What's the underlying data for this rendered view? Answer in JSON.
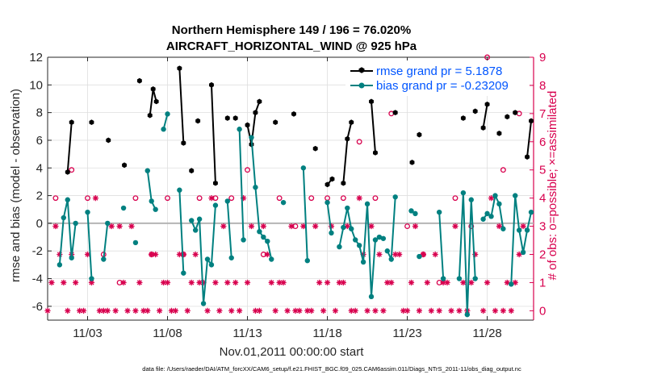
{
  "chart_data": {
    "type": "line",
    "title_line1": "Northern Hemisphere 149 / 196 = 76.020%",
    "title_line2": "AIRCRAFT_HORIZONTAL_WIND @ 925 hPa",
    "xlabel": "Nov.01,2011 00:00:00 start",
    "ylabel_left": "rmse and bias (model - observation)",
    "ylabel_right": "# of obs: o=possible; ×=assimilated",
    "footer": "data file: /Users/raeder/DAI/ATM_forcXX/CAM6_setup/f.e21.FHIST_BGC.f09_025.CAM6assim.011/Diags_NTrS_2011-11/obs_diag_output.nc",
    "xlim": [
      0.5,
      30.9
    ],
    "ylim_left": [
      -7,
      12
    ],
    "ylim_right": [
      -0.333,
      9
    ],
    "x_ticks": [
      3,
      8,
      13,
      18,
      23,
      28
    ],
    "x_tick_labels": [
      "11/03",
      "11/08",
      "11/13",
      "11/18",
      "11/23",
      "11/28"
    ],
    "y_left_ticks": [
      -6,
      -4,
      -2,
      0,
      2,
      4,
      6,
      8,
      10,
      12
    ],
    "y_left_tick_labels": [
      "-6",
      "-4",
      "-2",
      "0",
      "2",
      "4",
      "6",
      "8",
      "10",
      "12"
    ],
    "y_right_ticks": [
      0,
      1,
      2,
      3,
      4,
      5,
      6,
      7,
      8,
      9
    ],
    "y_right_tick_labels": [
      "0",
      "1",
      "2",
      "3",
      "4",
      "5",
      "6",
      "7",
      "8",
      "9"
    ],
    "grid": true,
    "legend": [
      {
        "name": "rmse",
        "label": "rmse grand pr = 5.1878",
        "color": "#000000"
      },
      {
        "name": "bias",
        "label": "bias grand pr = -0.23209",
        "color": "#008080"
      }
    ],
    "colors": {
      "rmse": "#000000",
      "bias": "#008080",
      "obs": "#d8004e",
      "zero_line": "#b4b4b4"
    },
    "rmse_segments": [
      [
        [
          1.75,
          3.7
        ],
        [
          2.0,
          7.3
        ]
      ],
      [
        [
          3.25,
          7.3
        ]
      ],
      [
        [
          4.3,
          6.0
        ]
      ],
      [
        [
          5.3,
          4.2
        ]
      ],
      [
        [
          6.25,
          10.3
        ]
      ],
      [
        [
          6.9,
          7.8
        ],
        [
          7.1,
          9.7
        ],
        [
          7.3,
          8.8
        ]
      ],
      [
        [
          8.75,
          11.2
        ],
        [
          9.0,
          5.8
        ]
      ],
      [
        [
          9.5,
          3.8
        ]
      ],
      [
        [
          9.9,
          7.4
        ]
      ],
      [
        [
          10.75,
          10.0
        ],
        [
          11.0,
          2.9
        ]
      ],
      [
        [
          11.75,
          7.6
        ]
      ],
      [
        [
          12.25,
          7.6
        ]
      ],
      [
        [
          13.0,
          7.1
        ],
        [
          13.25,
          5.7
        ],
        [
          13.5,
          8.0
        ],
        [
          13.75,
          8.8
        ]
      ],
      [
        [
          14.75,
          7.3
        ]
      ],
      [
        [
          15.9,
          7.9
        ]
      ],
      [
        [
          17.25,
          5.4
        ]
      ],
      [
        [
          18.0,
          2.8
        ],
        [
          18.3,
          3.2
        ]
      ],
      [
        [
          19.0,
          2.9
        ],
        [
          19.25,
          6.1
        ],
        [
          19.5,
          7.3
        ]
      ],
      [
        [
          20.75,
          8.8
        ],
        [
          21.0,
          5.1
        ]
      ],
      [
        [
          22.25,
          8.0
        ]
      ],
      [
        [
          23.3,
          4.4
        ]
      ],
      [
        [
          23.75,
          6.4
        ]
      ],
      [
        [
          26.5,
          7.6
        ]
      ],
      [
        [
          27.25,
          8.1
        ]
      ],
      [
        [
          27.75,
          6.9
        ],
        [
          28.0,
          8.6
        ]
      ],
      [
        [
          28.75,
          6.5
        ]
      ],
      [
        [
          29.25,
          7.7
        ]
      ],
      [
        [
          29.75,
          8.0
        ]
      ],
      [
        [
          30.5,
          4.8
        ],
        [
          30.75,
          7.4
        ]
      ]
    ],
    "bias_segments": [
      [
        [
          1.25,
          -3.0
        ],
        [
          1.5,
          0.4
        ],
        [
          1.75,
          1.7
        ],
        [
          2.0,
          -2.5
        ],
        [
          2.25,
          0.0
        ]
      ],
      [
        [
          3.0,
          0.8
        ],
        [
          3.25,
          -4.0
        ]
      ],
      [
        [
          4.0,
          -2.6
        ],
        [
          4.25,
          0.0
        ]
      ],
      [
        [
          5.25,
          1.1
        ]
      ],
      [
        [
          6.0,
          -1.4
        ]
      ],
      [
        [
          6.75,
          3.8
        ],
        [
          7.0,
          1.6
        ],
        [
          7.25,
          1.0
        ]
      ],
      [
        [
          7.75,
          6.8
        ],
        [
          8.0,
          7.9
        ]
      ],
      [
        [
          8.75,
          2.4
        ],
        [
          9.0,
          -3.6
        ]
      ],
      [
        [
          9.5,
          0.2
        ],
        [
          9.75,
          -0.5
        ],
        [
          10.0,
          0.3
        ],
        [
          10.25,
          -5.8
        ],
        [
          10.5,
          -2.6
        ],
        [
          10.75,
          -3.0
        ],
        [
          11.0,
          1.3
        ]
      ],
      [
        [
          11.75,
          1.6
        ],
        [
          12.0,
          -2.5
        ]
      ],
      [
        [
          12.5,
          6.8
        ],
        [
          12.75,
          -1.2
        ]
      ],
      [
        [
          13.25,
          6.2
        ],
        [
          13.5,
          2.6
        ],
        [
          13.75,
          -0.6
        ],
        [
          14.0,
          -1.0
        ],
        [
          14.25,
          -1.3
        ],
        [
          14.5,
          -2.6
        ]
      ],
      [
        [
          15.25,
          1.5
        ]
      ],
      [
        [
          16.5,
          4.0
        ],
        [
          16.75,
          -2.7
        ]
      ],
      [
        [
          18.0,
          1.5
        ],
        [
          18.25,
          -0.7
        ]
      ],
      [
        [
          18.75,
          -1.7
        ],
        [
          19.0,
          -0.3
        ],
        [
          19.25,
          1.1
        ],
        [
          19.5,
          -0.4
        ],
        [
          19.75,
          -1.2
        ],
        [
          20.0,
          -1.6
        ],
        [
          20.25,
          -2.8
        ],
        [
          20.5,
          1.4
        ],
        [
          20.75,
          -5.3
        ],
        [
          21.0,
          -1.2
        ]
      ],
      [
        [
          21.25,
          -1.0
        ],
        [
          21.5,
          -1.1
        ]
      ],
      [
        [
          21.75,
          -2.0
        ],
        [
          22.0,
          -2.6
        ],
        [
          22.25,
          1.9
        ]
      ],
      [
        [
          23.25,
          0.9
        ],
        [
          23.5,
          0.7
        ]
      ],
      [
        [
          23.75,
          -2.4
        ]
      ],
      [
        [
          25.0,
          0.8
        ],
        [
          25.25,
          -4.0
        ]
      ],
      [
        [
          26.25,
          -4.0
        ],
        [
          26.5,
          2.2
        ],
        [
          26.75,
          -6.6
        ],
        [
          27.0,
          1.7
        ],
        [
          27.25,
          -4.0
        ]
      ],
      [
        [
          27.75,
          0.3
        ],
        [
          28.0,
          0.7
        ],
        [
          28.25,
          0.5
        ],
        [
          28.5,
          2.0
        ],
        [
          28.75,
          1.4
        ],
        [
          29.0,
          -0.4
        ]
      ],
      [
        [
          29.5,
          -4.4
        ],
        [
          29.75,
          2.0
        ],
        [
          30.0,
          -0.5
        ],
        [
          30.25,
          -2.1
        ],
        [
          30.5,
          -0.5
        ],
        [
          30.75,
          0.8
        ]
      ]
    ],
    "obs_possible_x": [
      1,
      2,
      3,
      4,
      5,
      6,
      7,
      8,
      9,
      10,
      11,
      12,
      13,
      14,
      15,
      16,
      17,
      18,
      19,
      20,
      21,
      22,
      23,
      24,
      25,
      26,
      27,
      28,
      29,
      30
    ],
    "obs_possible_y": [
      4,
      5,
      4,
      2,
      1,
      4,
      2,
      4,
      2,
      4,
      4,
      4,
      5,
      2,
      4,
      3,
      4,
      4,
      4,
      6,
      4,
      7,
      3,
      2,
      1,
      4,
      3,
      9,
      5,
      7
    ],
    "obs_assimilated_x": [
      0.5,
      0.75,
      1.0,
      1.25,
      1.5,
      1.75,
      2.0,
      2.25,
      2.5,
      2.75,
      3.0,
      3.25,
      3.5,
      3.75,
      4.0,
      4.25,
      4.5,
      4.75,
      5.0,
      5.25,
      5.5,
      5.75,
      6.0,
      6.25,
      6.5,
      6.75,
      7.0,
      7.25,
      7.5,
      7.75,
      8.0,
      8.25,
      8.5,
      8.75,
      9.0,
      9.25,
      9.5,
      9.75,
      10.0,
      10.25,
      10.5,
      10.75,
      11.0,
      11.25,
      11.5,
      11.75,
      12.0,
      12.25,
      12.5,
      12.75,
      13.0,
      13.25,
      13.5,
      13.75,
      14.0,
      14.25,
      14.5,
      14.75,
      15.0,
      15.25,
      15.5,
      15.75,
      16.0,
      16.25,
      16.5,
      16.75,
      17.0,
      17.25,
      17.5,
      17.75,
      18.0,
      18.25,
      18.5,
      18.75,
      19.0,
      19.25,
      19.5,
      19.75,
      20.0,
      20.25,
      20.5,
      20.75,
      21.0,
      21.25,
      21.5,
      21.75,
      22.0,
      22.25,
      22.5,
      22.75,
      23.0,
      23.25,
      23.5,
      23.75,
      24.0,
      24.25,
      24.5,
      24.75,
      25.0,
      25.25,
      25.5,
      25.75,
      26.0,
      26.25,
      26.5,
      26.75,
      27.0,
      27.25,
      27.5,
      27.75,
      28.0,
      28.25,
      28.5,
      28.75,
      29.0,
      29.25,
      29.5,
      29.75,
      30.0,
      30.25,
      30.5,
      30.75
    ],
    "obs_assimilated_y": [
      0,
      1,
      3,
      2,
      1,
      0,
      2,
      1,
      0,
      0,
      2,
      1,
      4,
      0,
      0,
      0,
      3,
      0,
      3,
      1,
      0,
      3,
      0,
      1,
      0,
      0,
      2,
      2,
      0,
      1,
      1,
      0,
      0,
      2,
      2,
      0,
      1,
      2,
      1,
      1,
      0,
      4,
      1,
      0,
      3,
      1,
      0,
      1,
      0,
      4,
      1,
      3,
      0,
      0,
      3,
      2,
      1,
      0,
      1,
      1,
      0,
      3,
      0,
      0,
      3,
      0,
      0,
      3,
      1,
      0,
      1,
      3,
      0,
      1,
      1,
      3,
      0,
      0,
      4,
      2,
      0,
      3,
      0,
      2,
      0,
      1,
      1,
      2,
      2,
      0,
      0,
      1,
      3,
      0,
      2,
      1,
      0,
      2,
      0,
      1,
      1,
      0,
      3,
      0,
      1,
      0,
      1,
      2,
      8,
      0,
      1,
      4,
      0,
      3,
      0,
      1,
      0,
      1,
      2,
      3
    ]
  }
}
